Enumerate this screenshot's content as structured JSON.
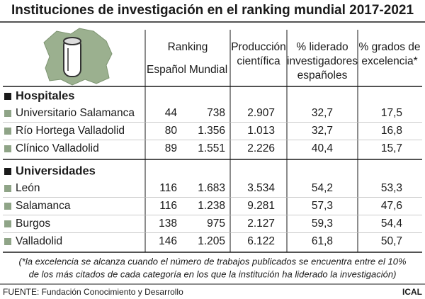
{
  "title": "Instituciones de investigación en el ranking mundial 2017-2021",
  "header": {
    "ranking": "Ranking",
    "espanol": "Español",
    "mundial": "Mundial",
    "produccion": [
      "Producción",
      "científica"
    ],
    "liderado": [
      "% liderado",
      "investigadores",
      "españoles"
    ],
    "excelencia": [
      "% grados de",
      "excelencia*"
    ]
  },
  "sections": [
    {
      "name": "Hospitales",
      "rows": [
        [
          "Universitario Salamanca",
          "44",
          "738",
          "2.907",
          "32,7",
          "17,5"
        ],
        [
          "Río Hortega Valladolid",
          "80",
          "1.356",
          "1.013",
          "32,7",
          "16,8"
        ],
        [
          "Clínico Valladolid",
          "89",
          "1.551",
          "2.226",
          "40,4",
          "15,7"
        ]
      ]
    },
    {
      "name": "Universidades",
      "rows": [
        [
          "León",
          "116",
          "1.683",
          "3.534",
          "54,2",
          "53,3"
        ],
        [
          "Salamanca",
          "116",
          "1.238",
          "9.281",
          "57,3",
          "47,6"
        ],
        [
          "Burgos",
          "138",
          "975",
          "2.127",
          "59,3",
          "54,4"
        ],
        [
          "Valladolid",
          "146",
          "1.205",
          "6.122",
          "61,8",
          "50,7"
        ]
      ]
    }
  ],
  "footnote": [
    "(*la excelencia se alcanza cuando el número de trabajos publicados se encuentra entre el 10%",
    "de los más citados de cada categoría en los que la institución ha liderado la investigación)"
  ],
  "source": "FUENTE: Fundación Conocimiento y Desarrollo",
  "credit": "ICAL"
}
